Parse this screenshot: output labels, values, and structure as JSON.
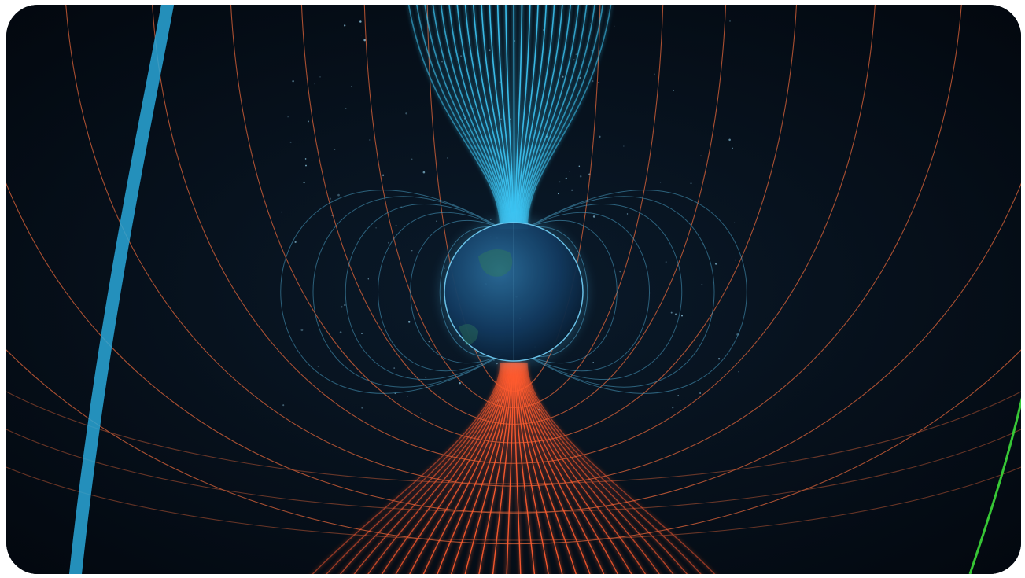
{
  "scene": {
    "subject": "magnetosphere-field-lines",
    "colors": {
      "background": "#050d17",
      "north_lines": "#3cc4f2",
      "south_lines": "#ff5a2e",
      "dipole_loops_blue": "#4a9fc4",
      "outer_lines_orange": "#e0653a",
      "left_arc": "#2aa7d8",
      "right_arc": "#3ddc3a",
      "globe": "#16406a"
    }
  }
}
